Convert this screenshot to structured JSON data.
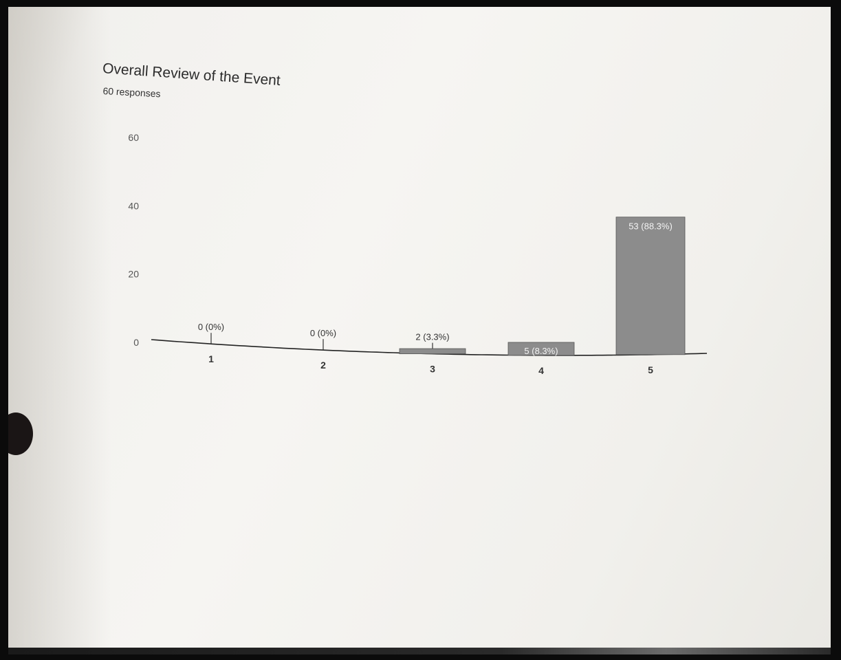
{
  "chart_data": {
    "type": "bar",
    "title": "Overall Review of the Event",
    "subtitle": "60 responses",
    "categories": [
      "1",
      "2",
      "3",
      "4",
      "5"
    ],
    "values": [
      0,
      0,
      2,
      5,
      53
    ],
    "data_labels": [
      "0 (0%)",
      "0 (0%)",
      "2 (3.3%)",
      "5 (8.3%)",
      "53 (88.3%)"
    ],
    "yticks": [
      "0",
      "20",
      "40",
      "60"
    ],
    "ylim": [
      0,
      60
    ],
    "grid": false,
    "bar_color": "#8c8c8c"
  }
}
